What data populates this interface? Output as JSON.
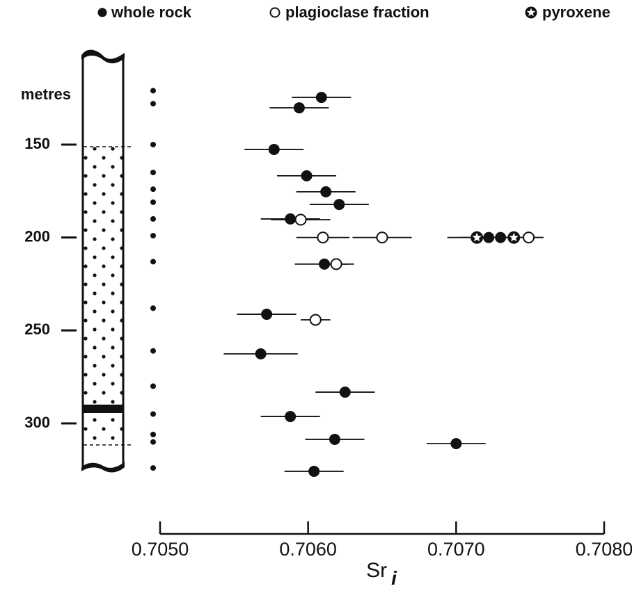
{
  "chart_data": {
    "type": "scatter",
    "x_label": "Sr",
    "x_label_subscript": "i",
    "y_label": "metres",
    "xlim": [
      0.705,
      0.708
    ],
    "xticks": [
      {
        "value": 0.705,
        "label": "0.7050"
      },
      {
        "value": 0.706,
        "label": "0.7060"
      },
      {
        "value": 0.707,
        "label": "0.7070"
      },
      {
        "value": 0.708,
        "label": "0.7080"
      }
    ],
    "ylim": [
      120,
      325
    ],
    "yticks": [
      150,
      200,
      250,
      300
    ],
    "y_inverted": true,
    "sample_depths": [
      121,
      128,
      150,
      165,
      174,
      181,
      190,
      199,
      213,
      238,
      261,
      280,
      295,
      306,
      310,
      324
    ],
    "series": [
      {
        "name": "whole rock",
        "marker": "filled",
        "color": "#111111",
        "x": [
          0.70609,
          0.70594,
          0.70577,
          0.70599,
          0.70612,
          0.70621,
          0.70588,
          0.70722,
          0.7073,
          0.70611,
          0.70572,
          0.70568,
          0.70625,
          0.70588,
          0.70618,
          0.707,
          0.70604
        ],
        "y": [
          124.6,
          130.2,
          152.6,
          166.8,
          175.4,
          182.2,
          190.0,
          200,
          200,
          214.3,
          241.3,
          262.6,
          283.2,
          296.3,
          308.6,
          310.9,
          325.8
        ],
        "errors": [
          0.0002,
          0.0002,
          0.0002,
          0.0002,
          0.0002,
          0.0002,
          0.0002,
          0.0002,
          0.0002,
          0.0002,
          0.0002,
          0.00025,
          0.0002,
          0.0002,
          0.0002,
          0.0002,
          0.0002
        ]
      },
      {
        "name": "plagioclase fraction",
        "marker": "open",
        "color": "#111111",
        "x": [
          0.70595,
          0.7061,
          0.7065,
          0.70749,
          0.70619,
          0.70605
        ],
        "y": [
          190.4,
          200,
          200,
          200,
          214.3,
          244.3
        ],
        "errors": [
          0.0002,
          0.00018,
          0.0002,
          0.0001,
          8e-05,
          0.0001
        ]
      },
      {
        "name": "pyroxene",
        "marker": "star",
        "color": "#111111",
        "x": [
          0.70714,
          0.70739
        ],
        "y": [
          200,
          200
        ],
        "errors": [
          0.0002,
          0.0002
        ]
      }
    ]
  }
}
